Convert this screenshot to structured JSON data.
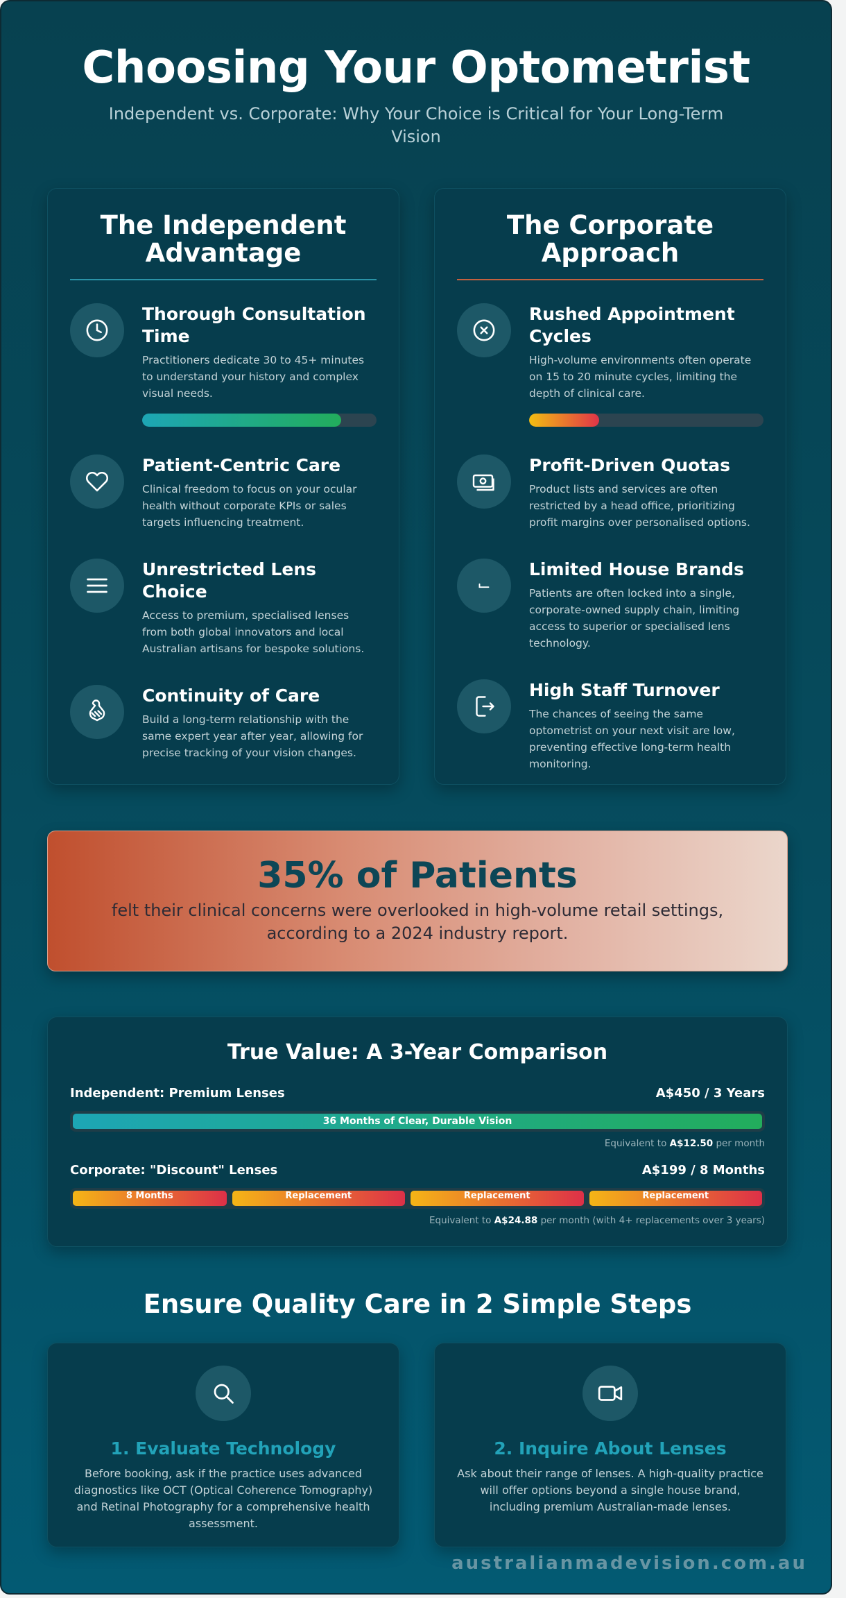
{
  "header": {
    "title": "Choosing Your Optometrist",
    "subtitle": "Independent vs. Corporate: Why Your Choice is Critical for Your Long-Term Vision"
  },
  "independent": {
    "title": "The Independent Advantage",
    "items": [
      {
        "icon": "clock-icon",
        "title": "Thorough Consultation Time",
        "desc": "Practitioners dedicate 30 to 45+ minutes to understand your history and complex visual needs.",
        "bar_fraction": 0.85
      },
      {
        "icon": "heart-icon",
        "title": "Patient-Centric Care",
        "desc": "Clinical freedom to focus on your ocular health without corporate KPIs or sales targets influencing treatment."
      },
      {
        "icon": "menu-icon",
        "title": "Unrestricted Lens Choice",
        "desc": "Access to premium, specialised lenses from both global innovators and local Australian artisans for bespoke solutions."
      },
      {
        "icon": "handshake-icon",
        "title": "Continuity of Care",
        "desc": "Build a long-term relationship with the same expert year after year, allowing for precise tracking of your vision changes."
      }
    ]
  },
  "corporate": {
    "title": "The Corporate Approach",
    "items": [
      {
        "icon": "x-circle-icon",
        "title": "Rushed Appointment Cycles",
        "desc": "High-volume environments often operate on 15 to 20 minute cycles, limiting the depth of clinical care.",
        "bar_fraction": 0.3
      },
      {
        "icon": "money-icon",
        "title": "Profit-Driven Quotas",
        "desc": "Product lists and services are often restricted by a head office, prioritizing profit margins over personalised options."
      },
      {
        "icon": "return-icon",
        "title": "Limited House Brands",
        "desc": "Patients are often locked into a single, corporate-owned supply chain, limiting access to superior or specialised lens technology."
      },
      {
        "icon": "exit-icon",
        "title": "High Staff Turnover",
        "desc": "The chances of seeing the same optometrist on your next visit are low, preventing effective long-term health monitoring."
      }
    ]
  },
  "stat": {
    "headline": "35% of Patients",
    "text": "felt their clinical concerns were overlooked in high-volume retail settings, according to a 2024 industry report."
  },
  "value": {
    "title": "True Value: A 3-Year Comparison",
    "independent": {
      "label": "Independent: Premium Lenses",
      "price": "A$450 / 3 Years",
      "bar_label": "36 Months of Clear, Durable Vision",
      "note_prefix": "Equivalent to ",
      "note_value": "A$12.50",
      "note_suffix": " per month"
    },
    "corporate": {
      "label": "Corporate: \"Discount\" Lenses",
      "price": "A$199 / 8 Months",
      "segments": [
        "8 Months",
        "Replacement",
        "Replacement",
        "Replacement"
      ],
      "note_prefix": "Equivalent to ",
      "note_value": "A$24.88",
      "note_suffix": " per month (with 4+ replacements over 3 years)"
    }
  },
  "steps": {
    "title": "Ensure Quality Care in 2 Simple Steps",
    "items": [
      {
        "icon": "search-icon",
        "title": "1. Evaluate Technology",
        "desc": "Before booking, ask if the practice uses advanced diagnostics like OCT (Optical Coherence Tomography) and Retinal Photography for a comprehensive health assessment."
      },
      {
        "icon": "video-icon",
        "title": "2. Inquire About Lenses",
        "desc": "Ask about their range of lenses. A high-quality practice will offer options beyond a single house brand, including premium Australian-made lenses."
      }
    ]
  },
  "footer": "australianmadevision.com.au",
  "colors": {
    "background": "#064b5d",
    "card": "#063d4d",
    "accent_teal": "#22a3b9",
    "accent_orange": "#c4613f"
  }
}
